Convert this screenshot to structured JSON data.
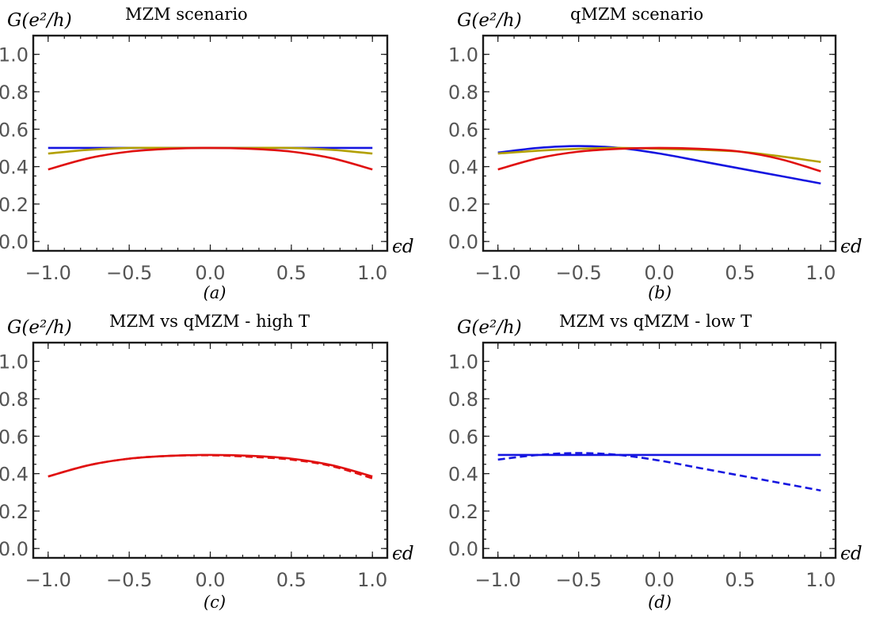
{
  "colors": {
    "blue": "#1515e0",
    "olive": "#b3a000",
    "red": "#e01010"
  },
  "chart_data": [
    {
      "type": "line",
      "title": "MZM scenario",
      "ylabel": "G(e²/h)",
      "xlabel": "ϵd",
      "caption": "(a)",
      "xlim": [
        -1.0,
        1.0
      ],
      "ylim": [
        -0.05,
        1.1
      ],
      "xticks": [
        "−1.0",
        "−0.5",
        "0.0",
        "0.5",
        "1.0"
      ],
      "yticks": [
        "0.0",
        "0.2",
        "0.4",
        "0.6",
        "0.8",
        "1.0"
      ],
      "x": [
        -1.0,
        -0.75,
        -0.5,
        -0.25,
        0.0,
        0.25,
        0.5,
        0.75,
        1.0
      ],
      "series": [
        {
          "color": "#1515e0",
          "dashed": false,
          "values": [
            0.5,
            0.5,
            0.5,
            0.5,
            0.5,
            0.5,
            0.5,
            0.5,
            0.5
          ]
        },
        {
          "color": "#b3a000",
          "dashed": false,
          "values": [
            0.47,
            0.49,
            0.5,
            0.5,
            0.5,
            0.5,
            0.5,
            0.49,
            0.47
          ]
        },
        {
          "color": "#e01010",
          "dashed": false,
          "values": [
            0.385,
            0.445,
            0.48,
            0.495,
            0.5,
            0.495,
            0.48,
            0.445,
            0.385
          ]
        }
      ]
    },
    {
      "type": "line",
      "title": "qMZM scenario",
      "ylabel": "G(e²/h)",
      "xlabel": "ϵd",
      "caption": "(b)",
      "xlim": [
        -1.0,
        1.0
      ],
      "ylim": [
        -0.05,
        1.1
      ],
      "xticks": [
        "−1.0",
        "−0.5",
        "0.0",
        "0.5",
        "1.0"
      ],
      "yticks": [
        "0.0",
        "0.2",
        "0.4",
        "0.6",
        "0.8",
        "1.0"
      ],
      "x": [
        -1.0,
        -0.75,
        -0.5,
        -0.25,
        0.0,
        0.25,
        0.5,
        0.75,
        1.0
      ],
      "series": [
        {
          "color": "#1515e0",
          "dashed": false,
          "values": [
            0.475,
            0.5,
            0.51,
            0.5,
            0.47,
            0.43,
            0.39,
            0.35,
            0.31
          ]
        },
        {
          "color": "#b3a000",
          "dashed": false,
          "values": [
            0.47,
            0.485,
            0.495,
            0.5,
            0.495,
            0.49,
            0.48,
            0.455,
            0.425
          ]
        },
        {
          "color": "#e01010",
          "dashed": false,
          "values": [
            0.385,
            0.445,
            0.48,
            0.495,
            0.5,
            0.495,
            0.48,
            0.44,
            0.375
          ]
        }
      ]
    },
    {
      "type": "line",
      "title": "MZM vs qMZM - high T",
      "ylabel": "G(e²/h)",
      "xlabel": "ϵd",
      "caption": "(c)",
      "xlim": [
        -1.0,
        1.0
      ],
      "ylim": [
        -0.05,
        1.1
      ],
      "xticks": [
        "−1.0",
        "−0.5",
        "0.0",
        "0.5",
        "1.0"
      ],
      "yticks": [
        "0.0",
        "0.2",
        "0.4",
        "0.6",
        "0.8",
        "1.0"
      ],
      "x": [
        -1.0,
        -0.75,
        -0.5,
        -0.25,
        0.0,
        0.25,
        0.5,
        0.75,
        1.0
      ],
      "series": [
        {
          "color": "#e01010",
          "dashed": false,
          "values": [
            0.385,
            0.445,
            0.48,
            0.495,
            0.5,
            0.495,
            0.48,
            0.445,
            0.385
          ]
        },
        {
          "color": "#e01010",
          "dashed": true,
          "values": [
            0.385,
            0.445,
            0.48,
            0.495,
            0.498,
            0.49,
            0.475,
            0.44,
            0.375
          ]
        }
      ]
    },
    {
      "type": "line",
      "title": "MZM vs qMZM - low T",
      "ylabel": "G(e²/h)",
      "xlabel": "ϵd",
      "caption": "(d)",
      "xlim": [
        -1.0,
        1.0
      ],
      "ylim": [
        -0.05,
        1.1
      ],
      "xticks": [
        "−1.0",
        "−0.5",
        "0.0",
        "0.5",
        "1.0"
      ],
      "yticks": [
        "0.0",
        "0.2",
        "0.4",
        "0.6",
        "0.8",
        "1.0"
      ],
      "x": [
        -1.0,
        -0.75,
        -0.5,
        -0.25,
        0.0,
        0.25,
        0.5,
        0.75,
        1.0
      ],
      "series": [
        {
          "color": "#1515e0",
          "dashed": false,
          "values": [
            0.5,
            0.5,
            0.5,
            0.5,
            0.5,
            0.5,
            0.5,
            0.5,
            0.5
          ]
        },
        {
          "color": "#1515e0",
          "dashed": true,
          "values": [
            0.475,
            0.5,
            0.51,
            0.5,
            0.47,
            0.43,
            0.39,
            0.35,
            0.31
          ]
        }
      ]
    }
  ]
}
